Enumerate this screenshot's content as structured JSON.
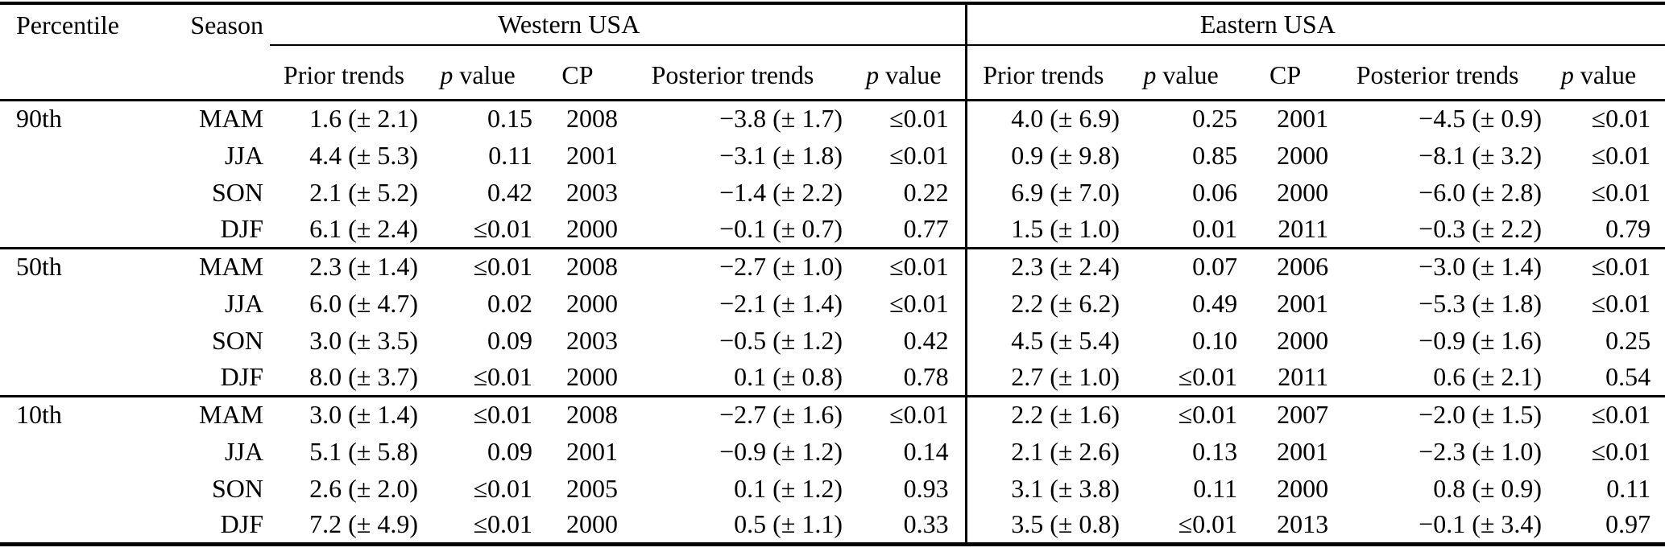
{
  "table": {
    "col_headers": {
      "percentile": "Percentile",
      "season": "Season",
      "west_group": "Western USA",
      "east_group": "Eastern USA"
    },
    "sub_headers": {
      "prior": "Prior trends",
      "p_italic": "p",
      "p_rest": "value",
      "cp": "CP",
      "posterior": "Posterior trends"
    },
    "text_color": "#000000",
    "background_color": "#ffffff",
    "groups": [
      {
        "percentile": "90th",
        "rows": [
          {
            "season": "MAM",
            "west": {
              "prior_trend": "1.6 (± 2.1)",
              "p_value": "0.15",
              "cp": "2008",
              "posterior_trend": "−3.8 (± 1.7)",
              "posterior_p_value": "≤0.01"
            },
            "east": {
              "prior_trend": "4.0 (± 6.9)",
              "p_value": "0.25",
              "cp": "2001",
              "posterior_trend": "−4.5 (± 0.9)",
              "posterior_p_value": "≤0.01"
            }
          },
          {
            "season": "JJA",
            "west": {
              "prior_trend": "4.4 (± 5.3)",
              "p_value": "0.11",
              "cp": "2001",
              "posterior_trend": "−3.1 (± 1.8)",
              "posterior_p_value": "≤0.01"
            },
            "east": {
              "prior_trend": "0.9 (± 9.8)",
              "p_value": "0.85",
              "cp": "2000",
              "posterior_trend": "−8.1 (± 3.2)",
              "posterior_p_value": "≤0.01"
            }
          },
          {
            "season": "SON",
            "west": {
              "prior_trend": "2.1 (± 5.2)",
              "p_value": "0.42",
              "cp": "2003",
              "posterior_trend": "−1.4 (± 2.2)",
              "posterior_p_value": "0.22"
            },
            "east": {
              "prior_trend": "6.9 (± 7.0)",
              "p_value": "0.06",
              "cp": "2000",
              "posterior_trend": "−6.0 (± 2.8)",
              "posterior_p_value": "≤0.01"
            }
          },
          {
            "season": "DJF",
            "west": {
              "prior_trend": "6.1 (± 2.4)",
              "p_value": "≤0.01",
              "cp": "2000",
              "posterior_trend": "−0.1 (± 0.7)",
              "posterior_p_value": "0.77"
            },
            "east": {
              "prior_trend": "1.5 (± 1.0)",
              "p_value": "0.01",
              "cp": "2011",
              "posterior_trend": "−0.3 (± 2.2)",
              "posterior_p_value": "0.79"
            }
          }
        ]
      },
      {
        "percentile": "50th",
        "rows": [
          {
            "season": "MAM",
            "west": {
              "prior_trend": "2.3 (± 1.4)",
              "p_value": "≤0.01",
              "cp": "2008",
              "posterior_trend": "−2.7 (± 1.0)",
              "posterior_p_value": "≤0.01"
            },
            "east": {
              "prior_trend": "2.3 (± 2.4)",
              "p_value": "0.07",
              "cp": "2006",
              "posterior_trend": "−3.0 (± 1.4)",
              "posterior_p_value": "≤0.01"
            }
          },
          {
            "season": "JJA",
            "west": {
              "prior_trend": "6.0 (± 4.7)",
              "p_value": "0.02",
              "cp": "2000",
              "posterior_trend": "−2.1 (± 1.4)",
              "posterior_p_value": "≤0.01"
            },
            "east": {
              "prior_trend": "2.2 (± 6.2)",
              "p_value": "0.49",
              "cp": "2001",
              "posterior_trend": "−5.3 (± 1.8)",
              "posterior_p_value": "≤0.01"
            }
          },
          {
            "season": "SON",
            "west": {
              "prior_trend": "3.0 (± 3.5)",
              "p_value": "0.09",
              "cp": "2003",
              "posterior_trend": "−0.5 (± 1.2)",
              "posterior_p_value": "0.42"
            },
            "east": {
              "prior_trend": "4.5 (± 5.4)",
              "p_value": "0.10",
              "cp": "2000",
              "posterior_trend": "−0.9 (± 1.6)",
              "posterior_p_value": "0.25"
            }
          },
          {
            "season": "DJF",
            "west": {
              "prior_trend": "8.0 (± 3.7)",
              "p_value": "≤0.01",
              "cp": "2000",
              "posterior_trend": "0.1 (± 0.8)",
              "posterior_p_value": "0.78"
            },
            "east": {
              "prior_trend": "2.7 (± 1.0)",
              "p_value": "≤0.01",
              "cp": "2011",
              "posterior_trend": "0.6 (± 2.1)",
              "posterior_p_value": "0.54"
            }
          }
        ]
      },
      {
        "percentile": "10th",
        "rows": [
          {
            "season": "MAM",
            "west": {
              "prior_trend": "3.0 (± 1.4)",
              "p_value": "≤0.01",
              "cp": "2008",
              "posterior_trend": "−2.7 (± 1.6)",
              "posterior_p_value": "≤0.01"
            },
            "east": {
              "prior_trend": "2.2 (± 1.6)",
              "p_value": "≤0.01",
              "cp": "2007",
              "posterior_trend": "−2.0 (± 1.5)",
              "posterior_p_value": "≤0.01"
            }
          },
          {
            "season": "JJA",
            "west": {
              "prior_trend": "5.1 (± 5.8)",
              "p_value": "0.09",
              "cp": "2001",
              "posterior_trend": "−0.9 (± 1.2)",
              "posterior_p_value": "0.14"
            },
            "east": {
              "prior_trend": "2.1 (± 2.6)",
              "p_value": "0.13",
              "cp": "2001",
              "posterior_trend": "−2.3 (± 1.0)",
              "posterior_p_value": "≤0.01"
            }
          },
          {
            "season": "SON",
            "west": {
              "prior_trend": "2.6 (± 2.0)",
              "p_value": "≤0.01",
              "cp": "2005",
              "posterior_trend": "0.1 (± 1.2)",
              "posterior_p_value": "0.93"
            },
            "east": {
              "prior_trend": "3.1 (± 3.8)",
              "p_value": "0.11",
              "cp": "2000",
              "posterior_trend": "0.8 (± 0.9)",
              "posterior_p_value": "0.11"
            }
          },
          {
            "season": "DJF",
            "west": {
              "prior_trend": "7.2 (± 4.9)",
              "p_value": "≤0.01",
              "cp": "2000",
              "posterior_trend": "0.5 (± 1.1)",
              "posterior_p_value": "0.33"
            },
            "east": {
              "prior_trend": "3.5 (± 0.8)",
              "p_value": "≤0.01",
              "cp": "2013",
              "posterior_trend": "−0.1 (± 3.4)",
              "posterior_p_value": "0.97"
            }
          }
        ]
      }
    ]
  }
}
